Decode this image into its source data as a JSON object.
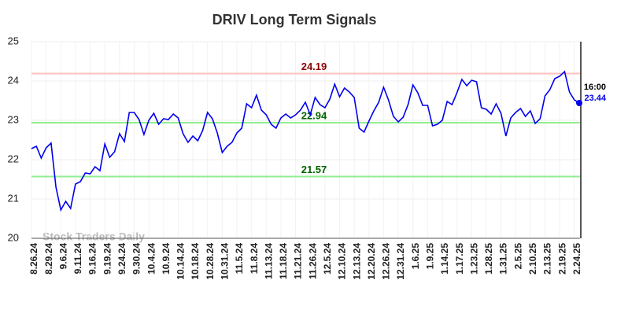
{
  "chart_data": {
    "type": "line",
    "title": "DRIV Long Term Signals",
    "watermark": "Stock Traders Daily",
    "last_label": "16:00",
    "color": "#0000ee",
    "categories": [
      "8.26.24",
      null,
      null,
      "8.29.24",
      null,
      null,
      "9.6.24",
      null,
      null,
      "9.11.24",
      null,
      null,
      "9.16.24",
      null,
      null,
      "9.19.24",
      null,
      null,
      "9.24.24",
      null,
      null,
      "9.30.24",
      null,
      null,
      "10.4.24",
      null,
      null,
      "10.9.24",
      null,
      null,
      "10.14.24",
      null,
      null,
      "10.18.24",
      null,
      null,
      "10.28.24",
      null,
      null,
      "10.31.24",
      null,
      null,
      "11.5.24",
      null,
      null,
      "11.8.24",
      null,
      null,
      "11.13.24",
      null,
      null,
      "11.18.24",
      null,
      null,
      "11.21.24",
      null,
      null,
      "11.26.24",
      null,
      null,
      "12.5.24",
      null,
      null,
      "12.10.24",
      null,
      null,
      "12.13.24",
      null,
      null,
      "12.20.24",
      null,
      null,
      "12.26.24",
      null,
      null,
      "12.31.24",
      null,
      null,
      "1.6.25",
      null,
      null,
      "1.9.25",
      null,
      null,
      "1.14.25",
      null,
      null,
      "1.17.25",
      null,
      null,
      "1.23.25",
      null,
      null,
      "1.28.25",
      null,
      null,
      "1.31.25",
      null,
      null,
      "2.5.25",
      null,
      null,
      "2.10.25",
      null,
      null,
      "2.13.25",
      null,
      null,
      "2.19.25",
      null,
      null,
      "2.24.25",
      null
    ],
    "values": [
      22.28,
      22.34,
      22.04,
      22.3,
      22.42,
      21.3,
      20.72,
      20.94,
      20.76,
      21.38,
      21.44,
      21.66,
      21.64,
      21.82,
      21.72,
      22.4,
      22.06,
      22.2,
      22.66,
      22.46,
      23.2,
      23.2,
      23.02,
      22.64,
      23.0,
      23.18,
      22.9,
      23.04,
      23.02,
      23.16,
      23.06,
      22.66,
      22.44,
      22.6,
      22.48,
      22.74,
      23.2,
      23.04,
      22.68,
      22.18,
      22.34,
      22.44,
      22.68,
      22.8,
      23.42,
      23.32,
      23.64,
      23.26,
      23.14,
      22.9,
      22.8,
      23.06,
      23.16,
      23.06,
      23.14,
      23.26,
      23.46,
      23.14,
      23.58,
      23.4,
      23.32,
      23.54,
      23.92,
      23.6,
      23.82,
      23.72,
      23.58,
      22.8,
      22.7,
      22.98,
      23.24,
      23.46,
      23.84,
      23.52,
      23.1,
      22.96,
      23.08,
      23.4,
      23.9,
      23.7,
      23.38,
      23.38,
      22.86,
      22.9,
      23.0,
      23.48,
      23.4,
      23.7,
      24.04,
      23.88,
      24.02,
      23.98,
      23.32,
      23.28,
      23.16,
      23.42,
      23.18,
      22.6,
      23.06,
      23.2,
      23.3,
      23.1,
      23.24,
      22.92,
      23.04,
      23.62,
      23.78,
      24.06,
      24.12,
      24.24,
      23.72,
      23.52,
      23.44
    ],
    "hlines": [
      {
        "value": 24.19,
        "color": "#ffc0c0",
        "label_color": "#8b0000"
      },
      {
        "value": 22.94,
        "color": "#90ee90",
        "label_color": "#006400"
      },
      {
        "value": 21.57,
        "color": "#90ee90",
        "label_color": "#006400"
      }
    ],
    "ylim": [
      20,
      25
    ],
    "yticks": [
      20,
      21,
      22,
      23,
      24,
      25
    ],
    "grid": true
  }
}
